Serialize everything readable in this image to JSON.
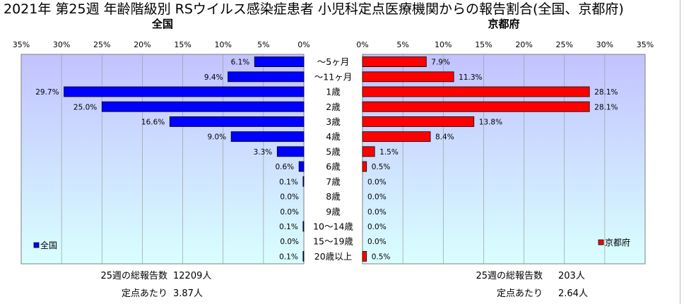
{
  "title": "2021年 第25週 年齢階級別 RSウイルス感染症患者 小児科定点医療機関からの報告割合(全国、京都府)",
  "panels": [
    {
      "title": "全国"
    },
    {
      "title": "京都府"
    }
  ],
  "chart_data": {
    "type": "bar",
    "orientation": "horizontal",
    "arrangement": "back-to-back",
    "categories": [
      "～5ヶ月",
      "～11ヶ月",
      "1歳",
      "2歳",
      "3歳",
      "4歳",
      "5歳",
      "6歳",
      "7歳",
      "8歳",
      "9歳",
      "10～14歳",
      "15～19歳",
      "20歳以上"
    ],
    "xlim": [
      0,
      35
    ],
    "xticks": [
      0,
      5,
      10,
      15,
      20,
      25,
      30,
      35
    ],
    "grid": true,
    "series": [
      {
        "name": "全国",
        "side": "left",
        "legend": "bottom-left",
        "color": "#0000ff",
        "values": [
          6.1,
          9.4,
          29.7,
          25.0,
          16.6,
          9.0,
          3.3,
          0.6,
          0.1,
          0.0,
          0.0,
          0.1,
          0.0,
          0.1
        ]
      },
      {
        "name": "京都府",
        "side": "right",
        "legend": "bottom-right",
        "color": "#ff0000",
        "values": [
          7.9,
          11.3,
          28.1,
          28.1,
          13.8,
          8.4,
          1.5,
          0.5,
          0.0,
          0.0,
          0.0,
          0.0,
          0.0,
          0.5
        ]
      }
    ]
  },
  "summary": [
    {
      "total_label": "25週の総報告数",
      "total_value": "12209人",
      "per_label": "定点あたり",
      "per_value": "3.87人"
    },
    {
      "total_label": "25週の総報告数",
      "total_value": "203人",
      "per_label": "定点あたり",
      "per_value": "2.64人"
    }
  ]
}
